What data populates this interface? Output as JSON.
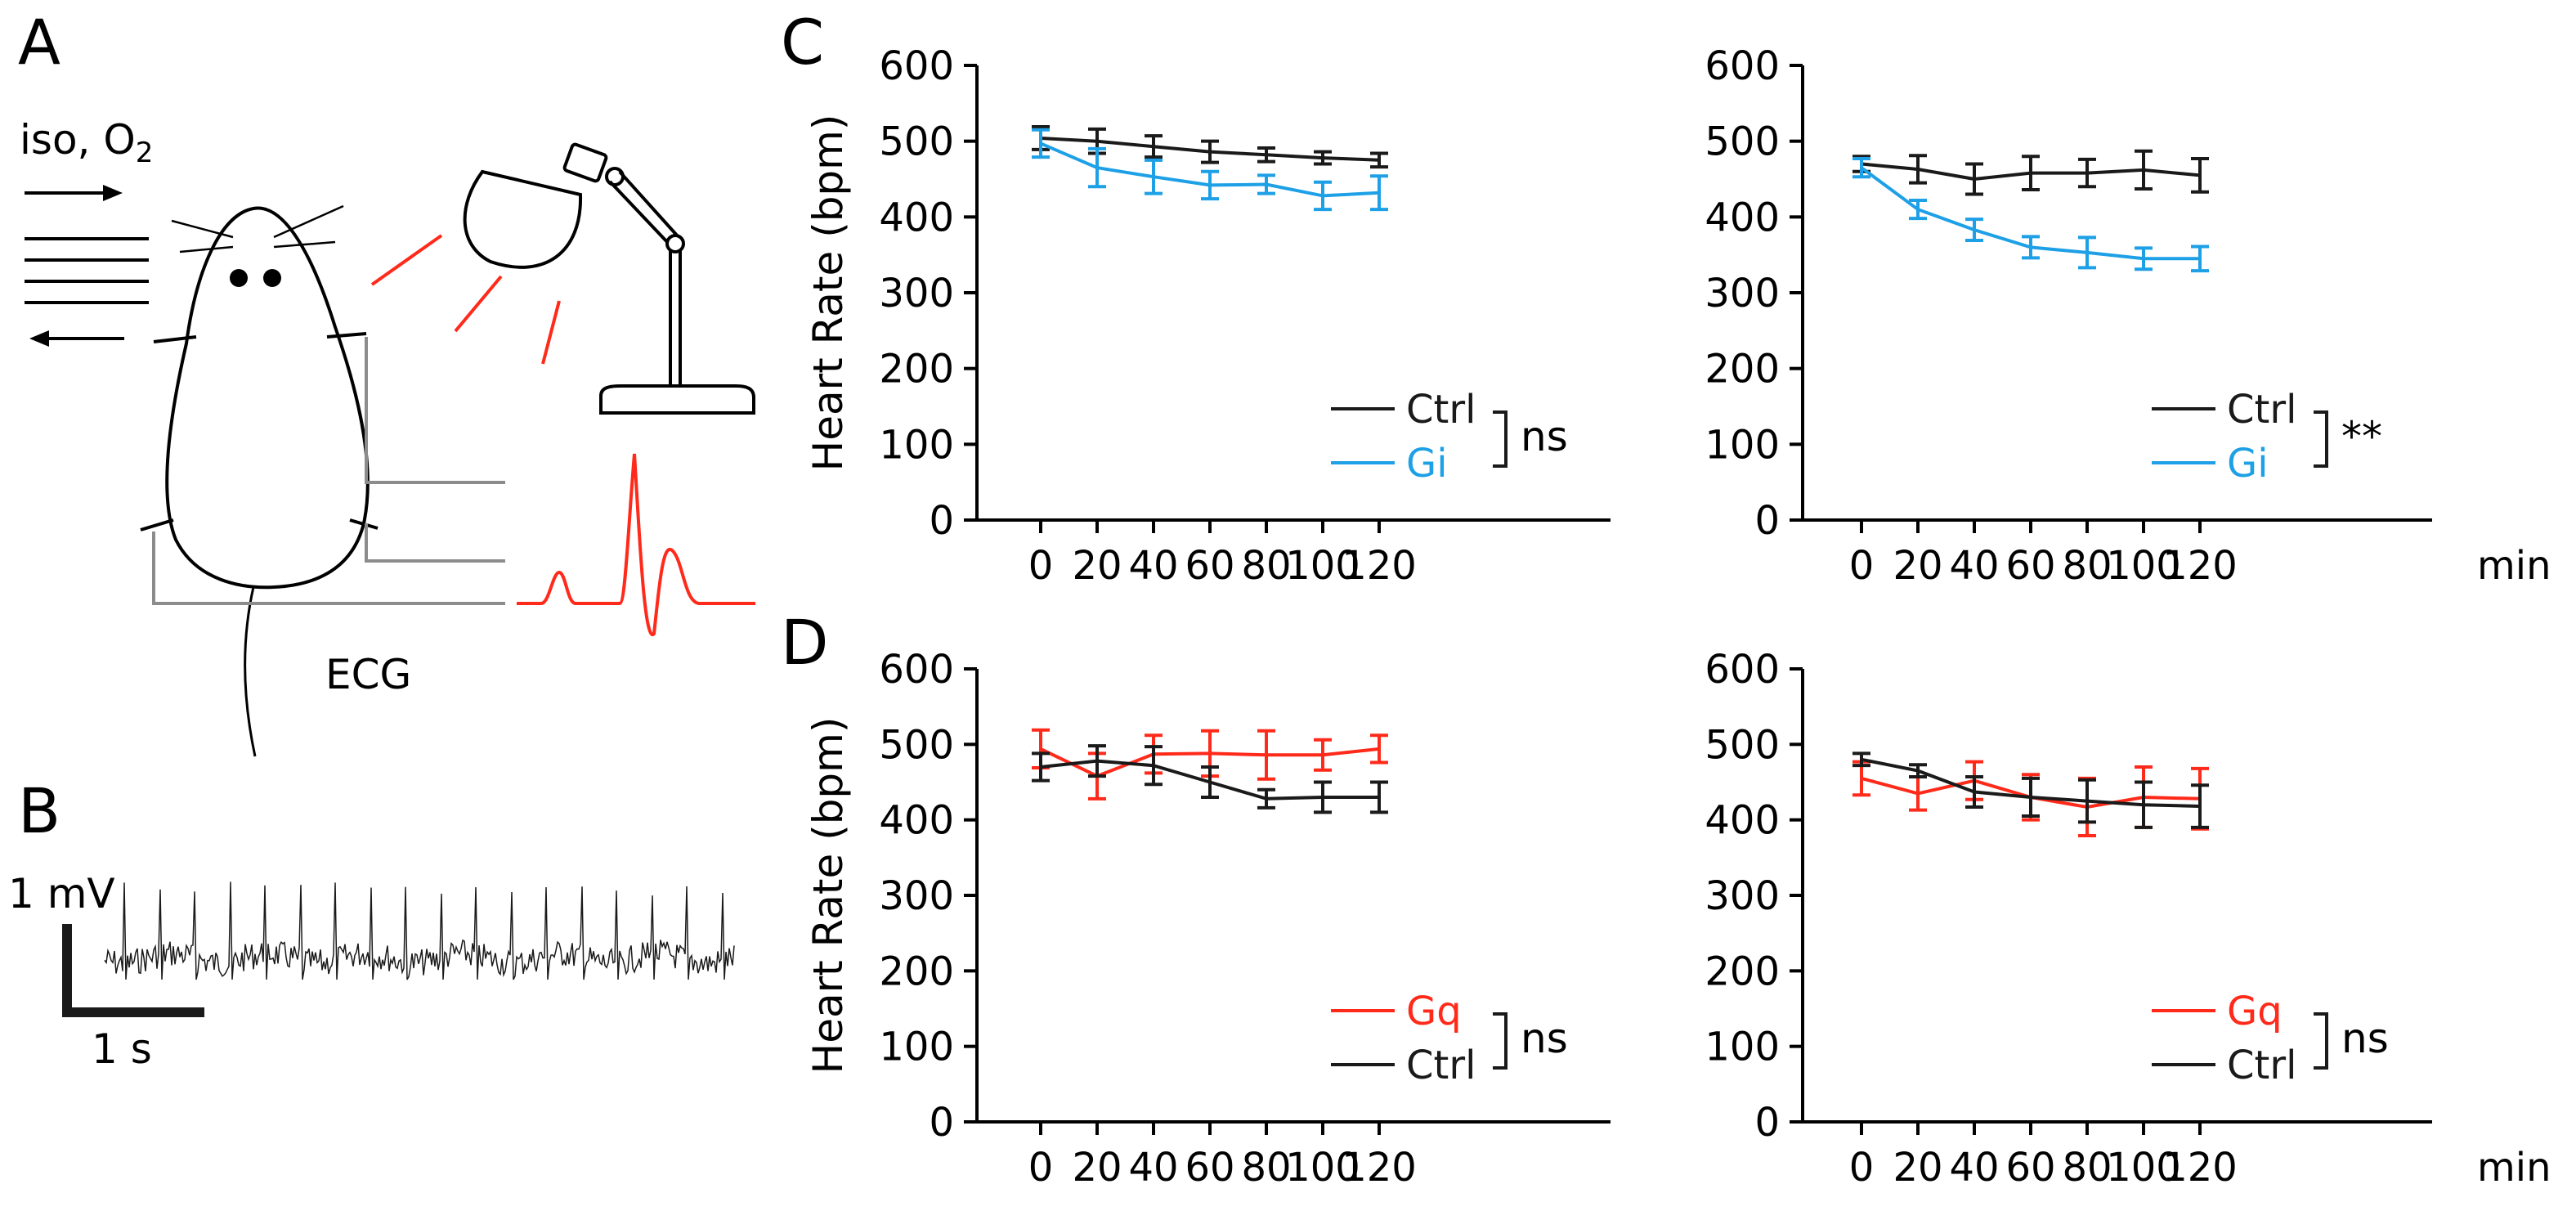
{
  "panels": {
    "a": {
      "letter": "A",
      "gas_label": "iso, O",
      "gas_subscript": "2",
      "ecg_label": "ECG"
    },
    "b": {
      "letter": "B",
      "scale_mv": "1 mV",
      "scale_s": "1 s"
    },
    "c": {
      "letter": "C"
    },
    "d": {
      "letter": "D"
    }
  },
  "colors": {
    "ctrl": "#1a1a1a",
    "gi": "#1ea0e6",
    "gq": "#ff2a1a",
    "device": "#ff2a1a",
    "wire": "#8c8c8c"
  },
  "chart_data": [
    {
      "id": "c-left",
      "type": "line",
      "ylabel": "Heart Rate (bpm)",
      "xlabel": "",
      "x": [
        0,
        20,
        40,
        60,
        80,
        100,
        120
      ],
      "ylim": [
        0,
        600
      ],
      "yticks": [
        0,
        100,
        200,
        300,
        400,
        500,
        600
      ],
      "series": [
        {
          "name": "Ctrl",
          "color": "#1a1a1a",
          "values": [
            504,
            500,
            493,
            486,
            482,
            478,
            475
          ],
          "err": [
            15,
            16,
            14,
            14,
            9,
            8,
            9
          ]
        },
        {
          "name": "Gi",
          "color": "#1ea0e6",
          "values": [
            497,
            465,
            453,
            442,
            443,
            428,
            432
          ],
          "err": [
            18,
            25,
            22,
            18,
            12,
            18,
            22
          ]
        }
      ],
      "legend_order": [
        "Ctrl",
        "Gi"
      ],
      "significance": "ns"
    },
    {
      "id": "c-right",
      "type": "line",
      "ylabel": "",
      "xlabel": "min",
      "x": [
        0,
        20,
        40,
        60,
        80,
        100,
        120
      ],
      "ylim": [
        0,
        600
      ],
      "yticks": [
        0,
        100,
        200,
        300,
        400,
        500,
        600
      ],
      "series": [
        {
          "name": "Ctrl",
          "color": "#1a1a1a",
          "values": [
            470,
            463,
            450,
            458,
            458,
            462,
            455
          ],
          "err": [
            10,
            18,
            20,
            22,
            18,
            25,
            22
          ]
        },
        {
          "name": "Gi",
          "color": "#1ea0e6",
          "values": [
            465,
            410,
            383,
            360,
            353,
            345,
            345
          ],
          "err": [
            12,
            12,
            14,
            14,
            20,
            14,
            16
          ]
        }
      ],
      "legend_order": [
        "Ctrl",
        "Gi"
      ],
      "significance": "**"
    },
    {
      "id": "d-left",
      "type": "line",
      "ylabel": "Heart Rate (bpm)",
      "xlabel": "",
      "x": [
        0,
        20,
        40,
        60,
        80,
        100,
        120
      ],
      "ylim": [
        0,
        600
      ],
      "yticks": [
        0,
        100,
        200,
        300,
        400,
        500,
        600
      ],
      "series": [
        {
          "name": "Gq",
          "color": "#ff2a1a",
          "values": [
            494,
            458,
            487,
            488,
            486,
            486,
            494
          ],
          "err": [
            25,
            30,
            25,
            30,
            32,
            20,
            18
          ]
        },
        {
          "name": "Ctrl",
          "color": "#1a1a1a",
          "values": [
            470,
            478,
            472,
            450,
            428,
            430,
            430
          ],
          "err": [
            18,
            20,
            25,
            20,
            12,
            20,
            20
          ]
        }
      ],
      "legend_order": [
        "Gq",
        "Ctrl"
      ],
      "significance": "ns"
    },
    {
      "id": "d-right",
      "type": "line",
      "ylabel": "",
      "xlabel": "min",
      "x": [
        0,
        20,
        40,
        60,
        80,
        100,
        120
      ],
      "ylim": [
        0,
        600
      ],
      "yticks": [
        0,
        100,
        200,
        300,
        400,
        500,
        600
      ],
      "series": [
        {
          "name": "Gq",
          "color": "#ff2a1a",
          "values": [
            455,
            435,
            452,
            430,
            417,
            430,
            428
          ],
          "err": [
            22,
            22,
            25,
            30,
            38,
            40,
            40
          ]
        },
        {
          "name": "Ctrl",
          "color": "#1a1a1a",
          "values": [
            480,
            465,
            437,
            430,
            425,
            420,
            418
          ],
          "err": [
            8,
            8,
            20,
            25,
            28,
            30,
            28
          ]
        }
      ],
      "legend_order": [
        "Gq",
        "Ctrl"
      ],
      "significance": "ns"
    }
  ]
}
